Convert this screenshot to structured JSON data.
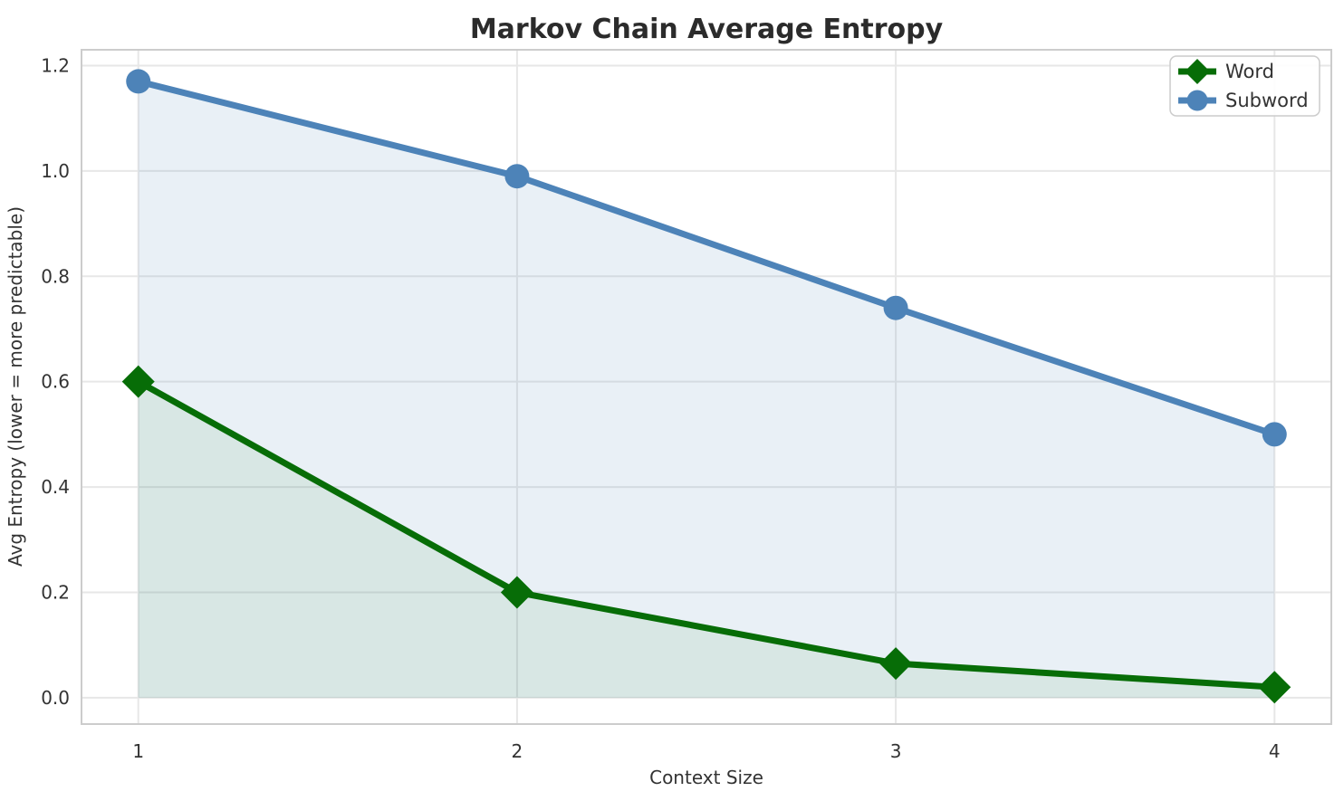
{
  "chart_data": {
    "type": "line",
    "title": "Markov Chain Average Entropy",
    "xlabel": "Context Size",
    "ylabel": "Avg Entropy (lower = more predictable)",
    "x": [
      1,
      2,
      3,
      4
    ],
    "series": [
      {
        "name": "Word",
        "values": [
          0.6,
          0.2,
          0.065,
          0.02
        ],
        "color": "#076d07",
        "marker": "diamond",
        "marker_size": 18,
        "line_width": 7,
        "fill_to_zero": true,
        "fill_alpha": 0.07
      },
      {
        "name": "Subword",
        "values": [
          1.17,
          0.99,
          0.74,
          0.5
        ],
        "color": "#4d83b8",
        "marker": "circle",
        "marker_size": 13.5,
        "line_width": 7,
        "fill_to_zero": true,
        "fill_alpha": 0.12
      }
    ],
    "xticks": [
      "1",
      "2",
      "3",
      "4"
    ],
    "yticks": [
      "0.0",
      "0.2",
      "0.4",
      "0.6",
      "0.8",
      "1.0",
      "1.2"
    ],
    "xlim": [
      0.85,
      4.15
    ],
    "ylim": [
      -0.05,
      1.23
    ],
    "grid": true,
    "legend_position": "upper right",
    "legend_entries": [
      "Word",
      "Subword"
    ]
  },
  "style": {
    "background": "#ffffff",
    "grid_color": "#e7e7e7",
    "spine_color": "#cccccc",
    "title_color": "#2b2b2b",
    "tick_color": "#333333"
  }
}
